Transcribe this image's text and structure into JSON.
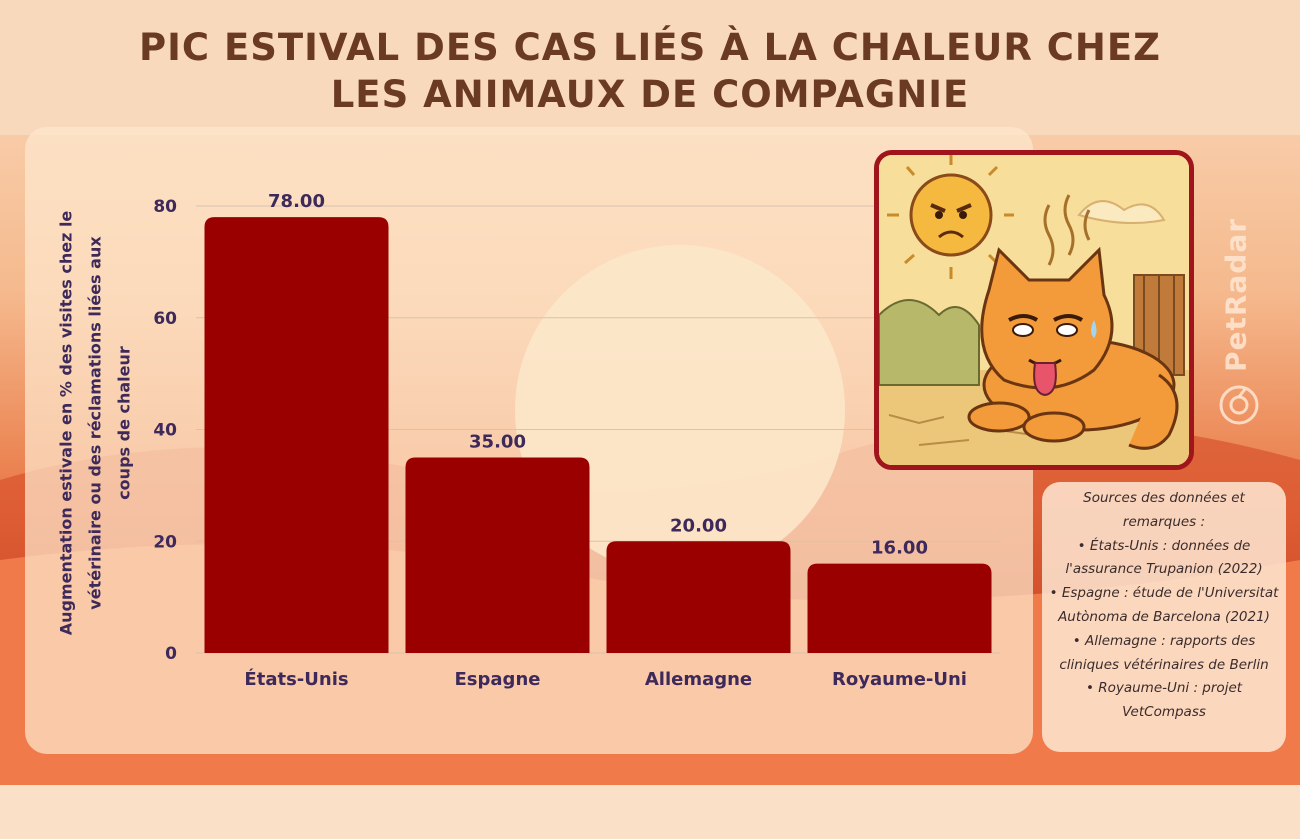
{
  "title": {
    "line1": "PIC ESTIVAL DES CAS LIÉS À LA CHALEUR CHEZ",
    "line2": "LES ANIMAUX DE COMPAGNIE"
  },
  "brand": {
    "name": "PetRadar"
  },
  "colors": {
    "bar": "#9b0000",
    "title": "#6b3a22",
    "axis_text": "#3e2a5a",
    "frame": "#a0141b"
  },
  "chart_data": {
    "type": "bar",
    "categories": [
      "États-Unis",
      "Espagne",
      "Allemagne",
      "Royaume-Uni"
    ],
    "values": [
      78.0,
      35.0,
      20.0,
      16.0
    ],
    "value_labels": [
      "78.00",
      "35.00",
      "20.00",
      "16.00"
    ],
    "title": "",
    "xlabel": "",
    "ylabel": "Augmentation estivale en % des visites chez le vétérinaire ou des réclamations liées aux coups de chaleur",
    "ylim": [
      0,
      80
    ],
    "yticks": [
      0,
      20,
      40,
      60,
      80
    ],
    "grid": true,
    "legend": "none"
  },
  "sources": {
    "heading": "Sources des données et remarques :",
    "items": [
      "• États-Unis : données de l'assurance Trupanion (2022)",
      "• Espagne : étude de l'Universitat Autònoma de Barcelona (2021)",
      "• Allemagne : rapports des cliniques vétérinaires de Berlin",
      "• Royaume-Uni : projet VetCompass"
    ]
  },
  "illustration": {
    "icon": "hot-cat-under-angry-sun-illustration"
  }
}
